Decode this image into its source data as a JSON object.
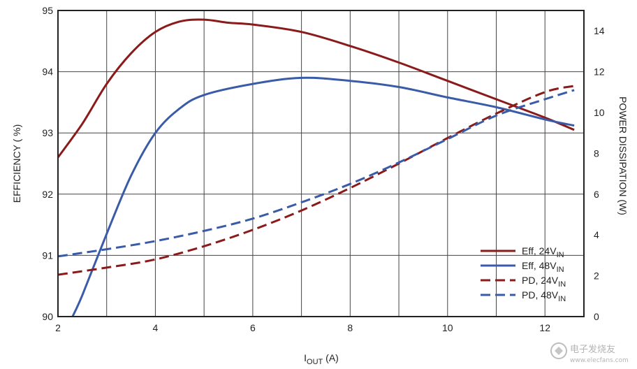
{
  "chart_data": {
    "type": "line",
    "xlabel_main": "I",
    "xlabel_sub": "OUT",
    "xlabel_unit": " (A)",
    "ylabel_left": "EFFICIENCY ( %)",
    "ylabel_right": "POWER DISSIPATION (W)",
    "xlim": [
      2,
      12.8
    ],
    "ylim_left": [
      90,
      95
    ],
    "ylim_right": [
      0,
      15
    ],
    "x_ticks": [
      2,
      4,
      6,
      8,
      10,
      12
    ],
    "y_left_ticks": [
      90,
      91,
      92,
      93,
      94,
      95
    ],
    "y_right_ticks": [
      0,
      2,
      4,
      6,
      8,
      10,
      12,
      14
    ],
    "grid": true,
    "legend_placement": "bottom-right",
    "series": [
      {
        "name_main": "Eff, 24V",
        "name_sub": "IN",
        "axis": "left",
        "style": "solid",
        "color": "#8B1A1A",
        "x": [
          2,
          2.5,
          3,
          3.5,
          4,
          4.5,
          5,
          5.5,
          6,
          7,
          8,
          9,
          10,
          11,
          12,
          12.6
        ],
        "y": [
          92.6,
          93.15,
          93.8,
          94.3,
          94.65,
          94.82,
          94.85,
          94.8,
          94.77,
          94.65,
          94.42,
          94.15,
          93.85,
          93.55,
          93.25,
          93.05
        ]
      },
      {
        "name_main": "Eff, 48V",
        "name_sub": "IN",
        "axis": "left",
        "style": "solid",
        "color": "#3A5BA8",
        "x": [
          2.3,
          2.5,
          3,
          3.5,
          4,
          4.5,
          5,
          6,
          7,
          8,
          9,
          10,
          11,
          12,
          12.6
        ],
        "y": [
          90,
          90.35,
          91.35,
          92.3,
          93.0,
          93.4,
          93.62,
          93.8,
          93.9,
          93.85,
          93.75,
          93.58,
          93.42,
          93.22,
          93.12
        ]
      },
      {
        "name_main": "PD, 24V",
        "name_sub": "IN",
        "axis": "right",
        "style": "dashed",
        "color": "#8B1A1A",
        "x": [
          2,
          3,
          4,
          5,
          6,
          7,
          8,
          9,
          10,
          11,
          12,
          12.6
        ],
        "y": [
          2.05,
          2.4,
          2.8,
          3.45,
          4.25,
          5.2,
          6.3,
          7.5,
          8.75,
          9.95,
          11.0,
          11.3
        ]
      },
      {
        "name_main": "PD, 48V",
        "name_sub": "IN",
        "axis": "right",
        "style": "dashed",
        "color": "#3A5BA8",
        "x": [
          2,
          3,
          4,
          5,
          6,
          7,
          8,
          9,
          10,
          11,
          12,
          12.6
        ],
        "y": [
          2.95,
          3.3,
          3.7,
          4.2,
          4.8,
          5.6,
          6.5,
          7.55,
          8.7,
          9.85,
          10.65,
          11.1
        ]
      }
    ]
  },
  "watermark": {
    "text": "电子发烧友",
    "url_text": "www.elecfans.com"
  }
}
